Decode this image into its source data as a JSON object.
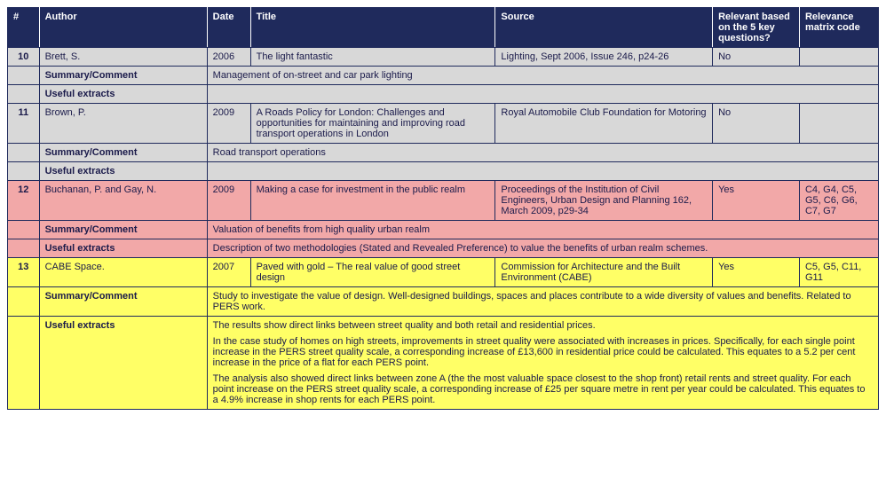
{
  "columns": [
    "#",
    "Author",
    "Date",
    "Title",
    "Source",
    "Relevant based on the 5 key questions?",
    "Relevance matrix code"
  ],
  "labels": {
    "summary": "Summary/Comment",
    "extracts": "Useful extracts"
  },
  "entries": [
    {
      "id": "10",
      "author": "Brett, S.",
      "date": "2006",
      "title": "The light fantastic",
      "source": "Lighting, Sept 2006, Issue 246, p24-26",
      "relevant": "No",
      "code": "",
      "summary": "Management of on-street and car park lighting",
      "extracts": [],
      "rowClass": "grey"
    },
    {
      "id": "11",
      "author": "Brown, P.",
      "date": "2009",
      "title": "A Roads Policy for London: Challenges and opportunities for maintaining and improving road transport operations in London",
      "source": "Royal Automobile Club Foundation for Motoring",
      "relevant": "No",
      "code": "",
      "summary": "Road transport operations",
      "extracts": [],
      "rowClass": "grey"
    },
    {
      "id": "12",
      "author": "Buchanan, P. and Gay, N.",
      "date": "2009",
      "title": "Making a case for investment in the public realm",
      "source": "Proceedings of the Institution of Civil Engineers, Urban Design and Planning 162, March 2009, p29-34",
      "relevant": "Yes",
      "code": "C4, G4, C5, G5, C6, G6, C7, G7",
      "summary": "Valuation of benefits from high quality urban realm",
      "extracts": [
        "Description of two methodologies (Stated and Revealed Preference) to value the benefits of urban realm schemes."
      ],
      "rowClass": "pink"
    },
    {
      "id": "13",
      "author": "CABE Space.",
      "date": "2007",
      "title": "Paved with gold – The real value of good street design",
      "source": "Commission for Architecture and the Built Environment (CABE)",
      "relevant": "Yes",
      "code": "C5, G5, C11, G11",
      "summary": "Study to investigate the value of design. Well-designed buildings, spaces and places contribute to a wide diversity of values and benefits. Related to PERS work.",
      "extracts": [
        "The results show direct links between street quality and both retail and residential prices.",
        "In the case study of homes on high streets, improvements in street quality were associated with increases in prices. Specifically, for each single point increase in the PERS street quality scale, a corresponding increase of £13,600 in residential price could be calculated. This equates to a 5.2 per cent increase in the price of a flat for each PERS point.",
        "The analysis also showed direct links between zone A (the the most valuable space closest to the shop front) retail rents and street quality. For each point increase on the PERS street quality scale, a corresponding increase of £25 per square metre in rent per year could be calculated. This equates to a 4.9% increase in shop rents for each PERS point."
      ],
      "rowClass": "yellow"
    }
  ]
}
